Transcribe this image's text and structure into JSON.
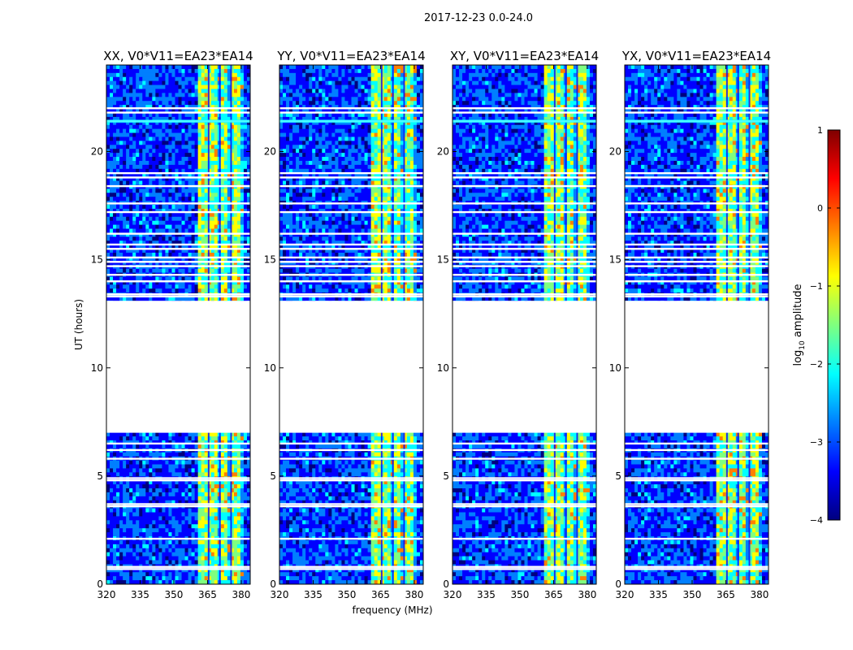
{
  "figure_title": "2017-12-23 0.0-24.0",
  "colors": {
    "jet": [
      "#00007f",
      "#0000ff",
      "#007fff",
      "#00ffff",
      "#7fff7f",
      "#ffff00",
      "#ff7f00",
      "#ff0000",
      "#7f0000"
    ],
    "gap": "#ffffff",
    "axis": "#000000"
  },
  "chart_data": [
    {
      "type": "heatmap",
      "title": "XX, V0*V11=EA23*EA14",
      "xlabel": "",
      "ylabel": "UT (hours)",
      "xlim": [
        320,
        384
      ],
      "ylim": [
        0,
        24
      ],
      "xticks": [
        320,
        335,
        350,
        365,
        380
      ],
      "yticks": [
        0,
        5,
        10,
        15,
        20
      ],
      "data_gap_hours": [
        7.0,
        13.1
      ],
      "bright_band_mhz": [
        360.5,
        380.5
      ],
      "value": "log10 amplitude"
    },
    {
      "type": "heatmap",
      "title": "YY, V0*V11=EA23*EA14",
      "xlabel": "frequency (MHz)",
      "ylabel": "",
      "xlim": [
        320,
        384
      ],
      "ylim": [
        0,
        24
      ],
      "xticks": [
        320,
        335,
        350,
        365,
        380
      ],
      "yticks": [
        0,
        5,
        10,
        15,
        20
      ],
      "data_gap_hours": [
        7.0,
        13.1
      ],
      "bright_band_mhz": [
        360.5,
        380.5
      ],
      "value": "log10 amplitude"
    },
    {
      "type": "heatmap",
      "title": "XY, V0*V11=EA23*EA14",
      "xlabel": "",
      "ylabel": "",
      "xlim": [
        320,
        384
      ],
      "ylim": [
        0,
        24
      ],
      "xticks": [
        320,
        335,
        350,
        365,
        380
      ],
      "yticks": [
        0,
        5,
        10,
        15,
        20
      ],
      "data_gap_hours": [
        7.0,
        13.1
      ],
      "bright_band_mhz": [
        360.5,
        380.5
      ],
      "value": "log10 amplitude"
    },
    {
      "type": "heatmap",
      "title": "YX, V0*V11=EA23*EA14",
      "xlabel": "",
      "ylabel": "",
      "xlim": [
        320,
        384
      ],
      "ylim": [
        0,
        24
      ],
      "xticks": [
        320,
        335,
        350,
        365,
        380
      ],
      "yticks": [
        0,
        5,
        10,
        15,
        20
      ],
      "data_gap_hours": [
        7.0,
        13.1
      ],
      "bright_band_mhz": [
        360.5,
        380.5
      ],
      "value": "log10 amplitude"
    }
  ],
  "colorbar": {
    "label": "log",
    "label_sub": "10",
    "label_rest": " amplitude",
    "range": [
      -4,
      1
    ],
    "ticks": [
      1,
      0,
      -1,
      -2,
      -3,
      -4
    ],
    "tick_labels": [
      "1",
      "0",
      "−1",
      "−2",
      "−3",
      "−4"
    ]
  }
}
